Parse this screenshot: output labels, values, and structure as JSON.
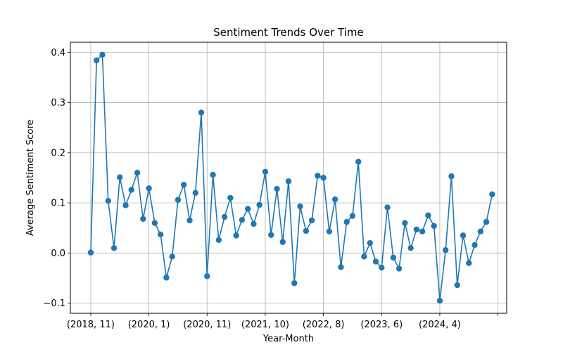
{
  "chart_data": {
    "type": "line",
    "title": "Sentiment Trends Over Time",
    "xlabel": "Year-Month",
    "ylabel": "Average Sentiment Score",
    "grid": true,
    "marker": "circle",
    "series_color": "#1f77b4",
    "xlim": [
      -3.5,
      71.5
    ],
    "ylim": [
      -0.12,
      0.42
    ],
    "yticks": [
      -0.1,
      0.0,
      0.1,
      0.2,
      0.3,
      0.4
    ],
    "ytick_labels": [
      "−0.1",
      "0.0",
      "0.1",
      "0.2",
      "0.3",
      "0.4"
    ],
    "xticks": [
      0,
      10,
      20,
      30,
      40,
      50,
      60,
      70
    ],
    "xtick_labels": [
      "(2018, 11)",
      "(2020, 1)",
      "(2020, 11)",
      "(2021, 10)",
      "(2022, 8)",
      "(2023, 6)",
      "(2024, 4)",
      ""
    ],
    "series": [
      {
        "values": [
          0.001,
          0.384,
          0.395,
          0.104,
          0.01,
          0.151,
          0.095,
          0.126,
          0.16,
          0.068,
          0.129,
          0.06,
          0.037,
          -0.049,
          -0.007,
          0.106,
          0.136,
          0.065,
          0.12,
          0.28,
          -0.046,
          0.156,
          0.026,
          0.072,
          0.11,
          0.035,
          0.066,
          0.088,
          0.058,
          0.096,
          0.162,
          0.036,
          0.128,
          0.022,
          0.143,
          -0.06,
          0.093,
          0.044,
          0.065,
          0.154,
          0.15,
          0.043,
          0.107,
          -0.028,
          0.062,
          0.074,
          0.182,
          -0.007,
          0.02,
          -0.017,
          -0.029,
          0.091,
          -0.009,
          -0.031,
          0.06,
          0.01,
          0.047,
          0.043,
          0.075,
          0.054,
          -0.095,
          0.006,
          0.153,
          -0.064,
          0.035,
          -0.02,
          0.016,
          0.043,
          0.062,
          0.117
        ]
      }
    ]
  }
}
